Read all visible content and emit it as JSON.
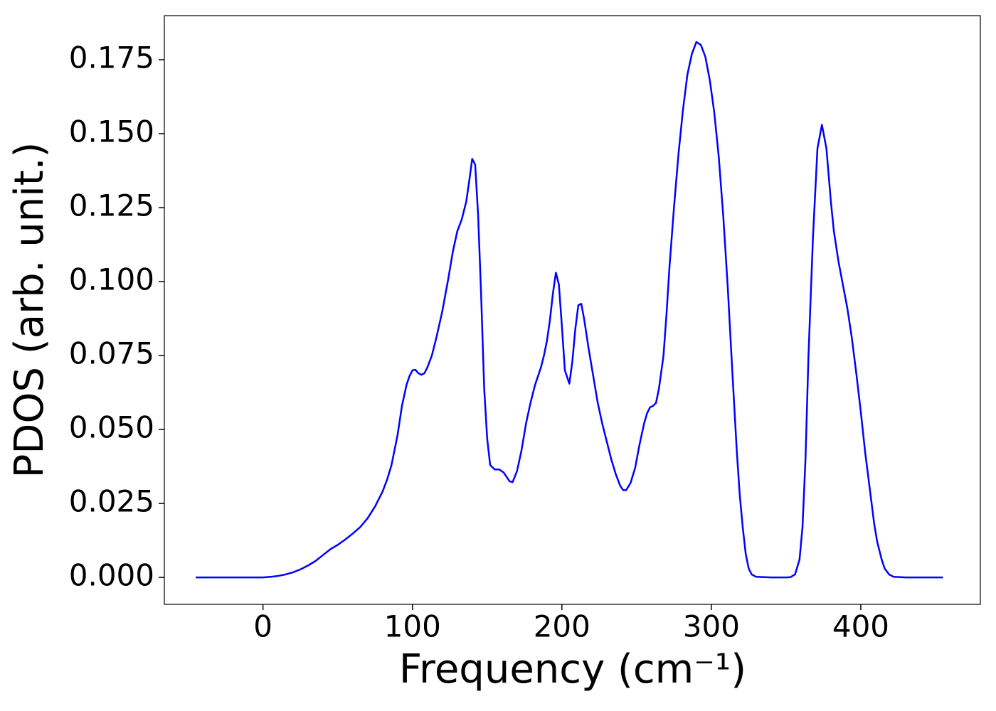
{
  "chart_data": {
    "type": "line",
    "xlabel": "Frequency (cm⁻¹)",
    "ylabel": "PDOS (arb. unit.)",
    "xlim": [
      -66,
      480
    ],
    "ylim": [
      -0.0091,
      0.1899
    ],
    "xticks": [
      0,
      100,
      200,
      300,
      400
    ],
    "yticks": [
      {
        "value": 0,
        "label": "0.000"
      },
      {
        "value": 0.025,
        "label": "0.025"
      },
      {
        "value": 0.05,
        "label": "0.050"
      },
      {
        "value": 0.075,
        "label": "0.075"
      },
      {
        "value": 0.1,
        "label": "0.100"
      },
      {
        "value": 0.125,
        "label": "0.125"
      },
      {
        "value": 0.15,
        "label": "0.150"
      },
      {
        "value": 0.175,
        "label": "0.175"
      }
    ],
    "grid": false,
    "series": [
      {
        "color": "#0000ff",
        "x": [
          -45,
          -30,
          -15,
          0,
          5,
          10,
          15,
          20,
          25,
          30,
          35,
          40,
          45,
          50,
          55,
          60,
          65,
          70,
          75,
          80,
          83,
          86,
          90,
          93,
          96,
          98,
          100,
          102,
          104,
          106,
          108,
          110,
          113,
          116,
          120,
          124,
          127,
          130,
          133,
          136,
          138,
          140,
          142,
          144,
          146,
          148,
          150,
          152,
          155,
          158,
          161,
          163,
          165,
          167,
          170,
          173,
          176,
          179,
          182,
          186,
          188,
          190,
          192,
          194,
          196,
          198,
          200,
          202,
          205,
          207,
          209,
          211,
          213,
          215,
          218,
          221,
          224,
          227,
          230,
          233,
          236,
          239,
          241,
          243,
          246,
          249,
          252,
          255,
          257,
          259,
          261,
          263,
          265,
          268,
          270,
          272,
          275,
          278,
          281,
          284,
          287,
          290,
          293,
          296,
          299,
          302,
          305,
          308,
          311,
          314,
          317,
          319,
          321,
          323,
          325,
          327,
          330,
          340,
          350,
          353,
          356,
          359,
          361,
          363,
          365,
          368,
          371,
          374,
          377,
          380,
          382,
          385,
          388,
          391,
          394,
          397,
          400,
          403,
          405,
          407,
          409,
          411,
          414,
          416,
          419,
          422,
          430,
          440,
          455
        ],
        "values": [
          0,
          0,
          0,
          0,
          0.0002,
          0.0005,
          0.001,
          0.0017,
          0.0027,
          0.004,
          0.0055,
          0.0075,
          0.0095,
          0.011,
          0.0128,
          0.0148,
          0.017,
          0.02,
          0.024,
          0.029,
          0.033,
          0.038,
          0.048,
          0.058,
          0.065,
          0.068,
          0.07,
          0.0702,
          0.069,
          0.0685,
          0.069,
          0.071,
          0.075,
          0.081,
          0.09,
          0.101,
          0.11,
          0.117,
          0.121,
          0.127,
          0.134,
          0.1415,
          0.1395,
          0.122,
          0.095,
          0.064,
          0.047,
          0.038,
          0.0365,
          0.0365,
          0.0355,
          0.034,
          0.0325,
          0.0322,
          0.036,
          0.043,
          0.052,
          0.059,
          0.065,
          0.071,
          0.075,
          0.08,
          0.087,
          0.096,
          0.103,
          0.099,
          0.085,
          0.07,
          0.0655,
          0.073,
          0.084,
          0.092,
          0.0925,
          0.087,
          0.077,
          0.068,
          0.059,
          0.052,
          0.046,
          0.04,
          0.035,
          0.031,
          0.0295,
          0.0295,
          0.032,
          0.037,
          0.045,
          0.052,
          0.0555,
          0.0575,
          0.058,
          0.059,
          0.064,
          0.075,
          0.089,
          0.105,
          0.125,
          0.143,
          0.158,
          0.17,
          0.177,
          0.181,
          0.18,
          0.176,
          0.168,
          0.157,
          0.142,
          0.122,
          0.098,
          0.07,
          0.043,
          0.028,
          0.017,
          0.008,
          0.003,
          0.001,
          0.0002,
          0,
          0,
          0.0001,
          0.001,
          0.006,
          0.017,
          0.04,
          0.075,
          0.115,
          0.145,
          0.153,
          0.145,
          0.127,
          0.117,
          0.107,
          0.099,
          0.091,
          0.081,
          0.069,
          0.056,
          0.042,
          0.034,
          0.026,
          0.018,
          0.012,
          0.006,
          0.003,
          0.001,
          0.0002,
          0,
          0,
          0
        ]
      }
    ]
  }
}
